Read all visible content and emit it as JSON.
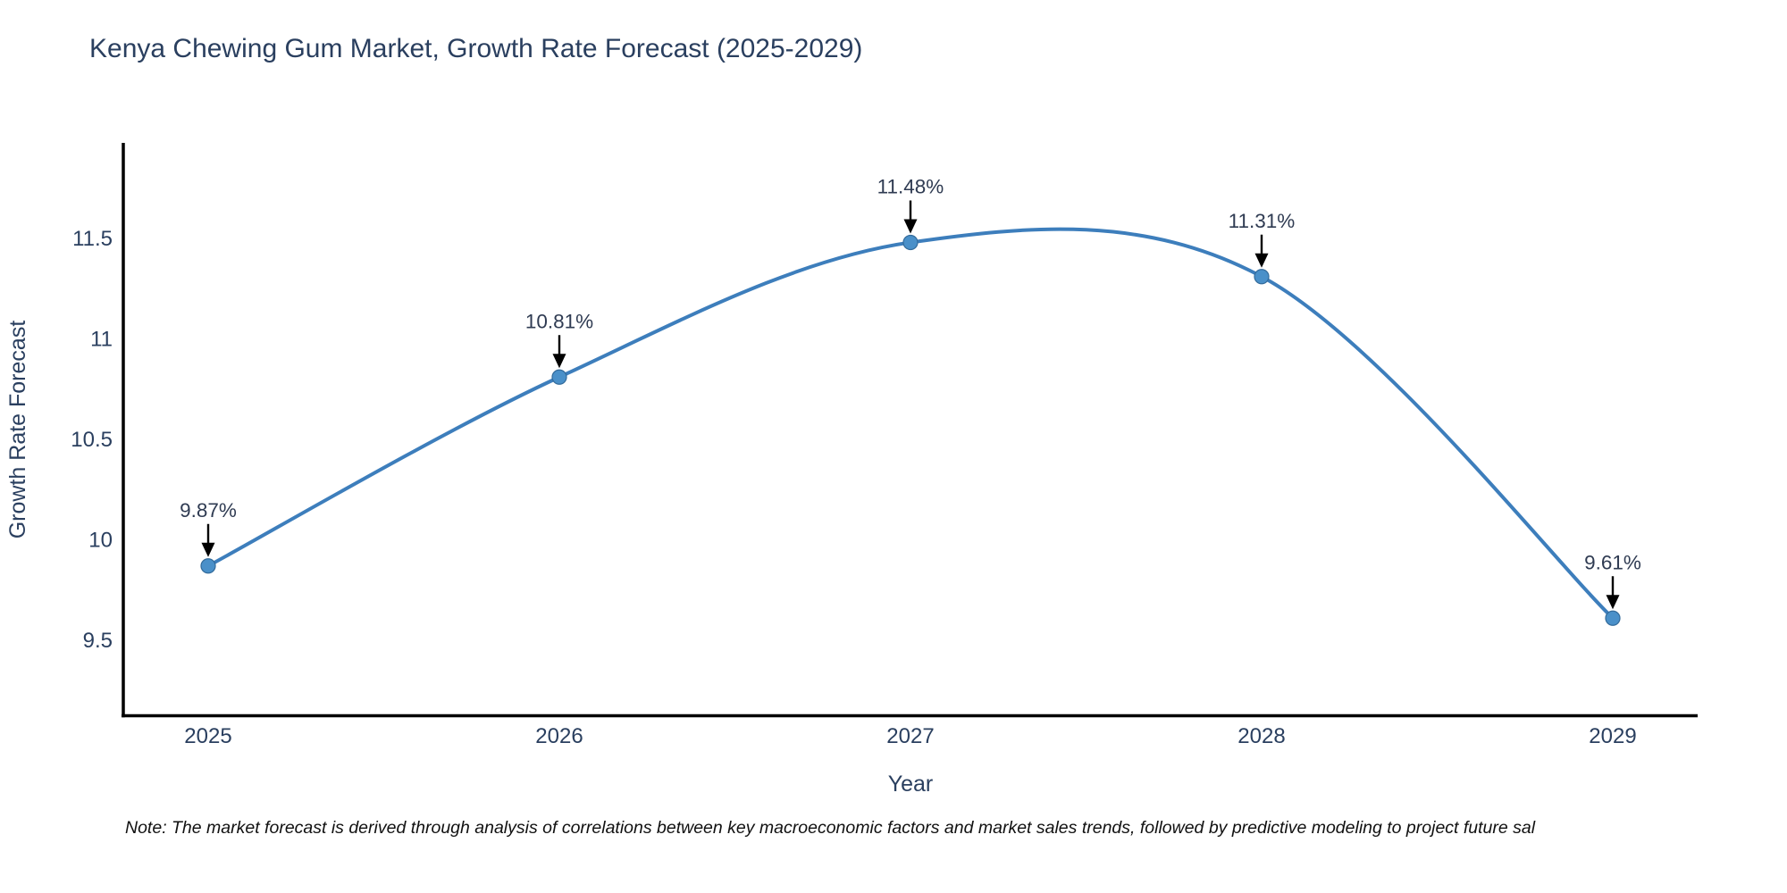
{
  "chart_data": {
    "type": "line",
    "title": "Kenya Chewing Gum Market, Growth Rate Forecast (2025-2029)",
    "xlabel": "Year",
    "ylabel": "Growth Rate Forecast",
    "x": [
      2025,
      2026,
      2027,
      2028,
      2029
    ],
    "values": [
      9.87,
      10.81,
      11.48,
      11.31,
      9.61
    ],
    "point_labels": [
      "9.87%",
      "10.81%",
      "11.48%",
      "11.31%",
      "9.61%"
    ],
    "xtick_labels": [
      "2025",
      "2026",
      "2027",
      "2028",
      "2029"
    ],
    "ytick_values": [
      11.5,
      11,
      10.5,
      10,
      9.5
    ],
    "ytick_labels": [
      "11.5",
      "11",
      "10.5",
      "10",
      "9.5"
    ],
    "ylim": [
      9.1,
      11.95
    ],
    "line_shape": "spline",
    "grid": false,
    "legend": "none",
    "note": "Note: The market forecast is derived through analysis of correlations between key macroeconomic factors and market sales trends, followed by predictive modeling to project future sal",
    "colors": {
      "line": "#3d7ebc",
      "marker": "#4a90c9",
      "marker_edge": "#336b9b",
      "axis_line": "#000000",
      "tick_text": "#2a3f5f",
      "annotation_text": "#2f3b52",
      "arrow": "#000000",
      "title_text": "#2a3f5f"
    }
  }
}
